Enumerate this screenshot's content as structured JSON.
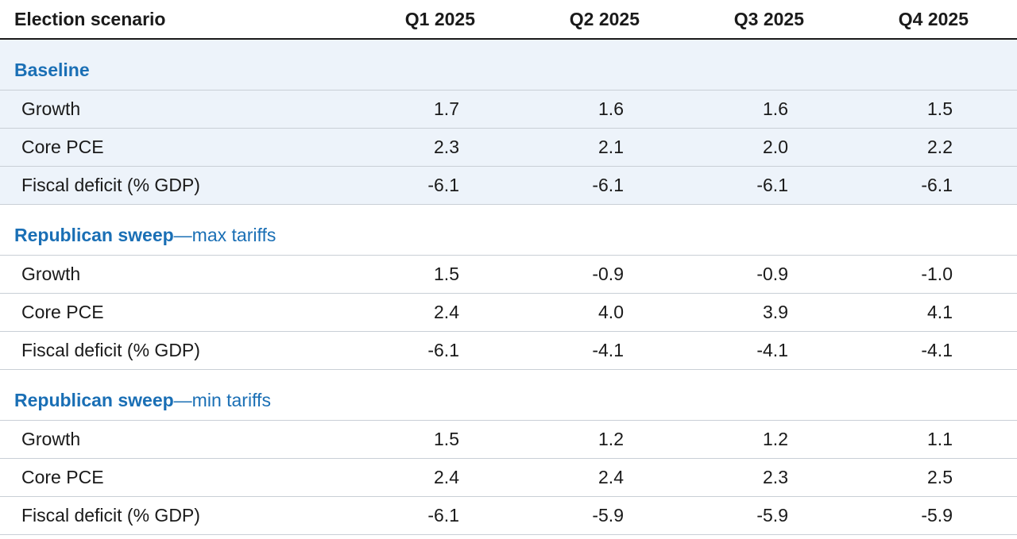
{
  "header": {
    "scenario": "Election scenario",
    "q1": "Q1 2025",
    "q2": "Q2 2025",
    "q3": "Q3 2025",
    "q4": "Q4 2025"
  },
  "sections": [
    {
      "title_bold": "Baseline",
      "title_light": "",
      "rows": [
        {
          "label": "Growth",
          "values": [
            "1.7",
            "1.6",
            "1.6",
            "1.5"
          ]
        },
        {
          "label": "Core PCE",
          "values": [
            "2.3",
            "2.1",
            "2.0",
            "2.2"
          ]
        },
        {
          "label": "Fiscal deficit (% GDP)",
          "values": [
            "-6.1",
            "-6.1",
            "-6.1",
            "-6.1"
          ]
        }
      ]
    },
    {
      "title_bold": "Republican sweep",
      "title_light": "—max tariffs",
      "rows": [
        {
          "label": "Growth",
          "values": [
            "1.5",
            "-0.9",
            "-0.9",
            "-1.0"
          ]
        },
        {
          "label": "Core PCE",
          "values": [
            "2.4",
            "4.0",
            "3.9",
            "4.1"
          ]
        },
        {
          "label": "Fiscal deficit (% GDP)",
          "values": [
            "-6.1",
            "-4.1",
            "-4.1",
            "-4.1"
          ]
        }
      ]
    },
    {
      "title_bold": "Republican sweep",
      "title_light": "—min tariffs",
      "rows": [
        {
          "label": "Growth",
          "values": [
            "1.5",
            "1.2",
            "1.2",
            "1.1"
          ]
        },
        {
          "label": "Core PCE",
          "values": [
            "2.4",
            "2.4",
            "2.3",
            "2.5"
          ]
        },
        {
          "label": "Fiscal deficit (% GDP)",
          "values": [
            "-6.1",
            "-5.9",
            "-5.9",
            "-5.9"
          ]
        }
      ]
    }
  ]
}
